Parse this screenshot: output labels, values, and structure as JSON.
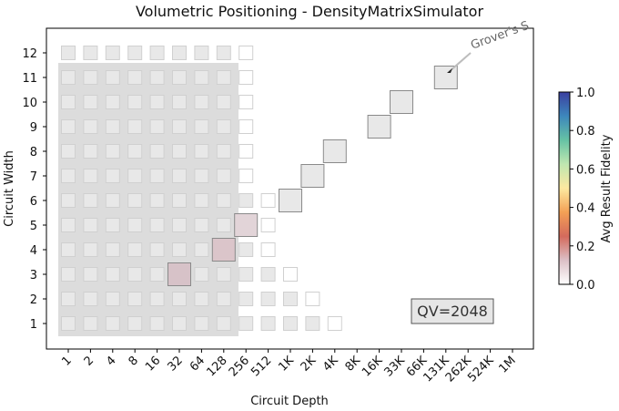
{
  "chart_data": {
    "type": "heatmap",
    "title": "Volumetric Positioning - DensityMatrixSimulator",
    "xlabel": "Circuit Depth",
    "ylabel": "Circuit Width",
    "x_tick_labels": [
      "1",
      "2",
      "4",
      "8",
      "16",
      "32",
      "64",
      "128",
      "256",
      "512",
      "1K",
      "2K",
      "4K",
      "8K",
      "16K",
      "33K",
      "66K",
      "131K",
      "262K",
      "524K",
      "1M"
    ],
    "y_tick_labels": [
      "1",
      "2",
      "3",
      "4",
      "5",
      "6",
      "7",
      "8",
      "9",
      "10",
      "11",
      "12"
    ],
    "grid": false,
    "quantum_volume_box": {
      "label": "QV=2048",
      "width_range": [
        1,
        11
      ],
      "depth_range": [
        1,
        128
      ]
    },
    "annotation": {
      "text": "Grover's S",
      "target_width": 11,
      "target_depth": "131K"
    },
    "colorbar": {
      "label": "Avg Result Fidelity",
      "range": [
        0.0,
        1.0
      ],
      "ticks": [
        "0.0",
        "0.2",
        "0.4",
        "0.6",
        "0.8",
        "1.0"
      ],
      "colors": [
        "#ffffff",
        "#dcc0c6",
        "#d46a5c",
        "#f3a055",
        "#fde9a0",
        "#bfe7b0",
        "#66c2a4",
        "#3d87bc",
        "#3b3fa0"
      ]
    },
    "cells": [
      {
        "width": 12,
        "depth": "1",
        "kind": "volumetric"
      },
      {
        "width": 12,
        "depth": "2",
        "kind": "volumetric"
      },
      {
        "width": 12,
        "depth": "4",
        "kind": "volumetric"
      },
      {
        "width": 12,
        "depth": "8",
        "kind": "volumetric"
      },
      {
        "width": 12,
        "depth": "16",
        "kind": "volumetric"
      },
      {
        "width": 12,
        "depth": "32",
        "kind": "volumetric"
      },
      {
        "width": 12,
        "depth": "64",
        "kind": "volumetric"
      },
      {
        "width": 12,
        "depth": "128",
        "kind": "volumetric"
      },
      {
        "width": 12,
        "depth": "256",
        "kind": "empty"
      },
      {
        "width": 11,
        "depth": "1",
        "kind": "volumetric"
      },
      {
        "width": 11,
        "depth": "2",
        "kind": "volumetric"
      },
      {
        "width": 11,
        "depth": "4",
        "kind": "volumetric"
      },
      {
        "width": 11,
        "depth": "8",
        "kind": "volumetric"
      },
      {
        "width": 11,
        "depth": "16",
        "kind": "volumetric"
      },
      {
        "width": 11,
        "depth": "32",
        "kind": "volumetric"
      },
      {
        "width": 11,
        "depth": "64",
        "kind": "volumetric"
      },
      {
        "width": 11,
        "depth": "128",
        "kind": "volumetric"
      },
      {
        "width": 11,
        "depth": "256",
        "kind": "empty"
      },
      {
        "width": 10,
        "depth": "1",
        "kind": "volumetric"
      },
      {
        "width": 10,
        "depth": "2",
        "kind": "volumetric"
      },
      {
        "width": 10,
        "depth": "4",
        "kind": "volumetric"
      },
      {
        "width": 10,
        "depth": "8",
        "kind": "volumetric"
      },
      {
        "width": 10,
        "depth": "16",
        "kind": "volumetric"
      },
      {
        "width": 10,
        "depth": "32",
        "kind": "volumetric"
      },
      {
        "width": 10,
        "depth": "64",
        "kind": "volumetric"
      },
      {
        "width": 10,
        "depth": "128",
        "kind": "volumetric"
      },
      {
        "width": 10,
        "depth": "256",
        "kind": "empty"
      },
      {
        "width": 9,
        "depth": "1",
        "kind": "volumetric"
      },
      {
        "width": 9,
        "depth": "2",
        "kind": "volumetric"
      },
      {
        "width": 9,
        "depth": "4",
        "kind": "volumetric"
      },
      {
        "width": 9,
        "depth": "8",
        "kind": "volumetric"
      },
      {
        "width": 9,
        "depth": "16",
        "kind": "volumetric"
      },
      {
        "width": 9,
        "depth": "32",
        "kind": "volumetric"
      },
      {
        "width": 9,
        "depth": "64",
        "kind": "volumetric"
      },
      {
        "width": 9,
        "depth": "128",
        "kind": "volumetric"
      },
      {
        "width": 9,
        "depth": "256",
        "kind": "empty"
      },
      {
        "width": 8,
        "depth": "1",
        "kind": "volumetric"
      },
      {
        "width": 8,
        "depth": "2",
        "kind": "volumetric"
      },
      {
        "width": 8,
        "depth": "4",
        "kind": "volumetric"
      },
      {
        "width": 8,
        "depth": "8",
        "kind": "volumetric"
      },
      {
        "width": 8,
        "depth": "16",
        "kind": "volumetric"
      },
      {
        "width": 8,
        "depth": "32",
        "kind": "volumetric"
      },
      {
        "width": 8,
        "depth": "64",
        "kind": "volumetric"
      },
      {
        "width": 8,
        "depth": "128",
        "kind": "volumetric"
      },
      {
        "width": 8,
        "depth": "256",
        "kind": "empty"
      },
      {
        "width": 7,
        "depth": "1",
        "kind": "volumetric"
      },
      {
        "width": 7,
        "depth": "2",
        "kind": "volumetric"
      },
      {
        "width": 7,
        "depth": "4",
        "kind": "volumetric"
      },
      {
        "width": 7,
        "depth": "8",
        "kind": "volumetric"
      },
      {
        "width": 7,
        "depth": "16",
        "kind": "volumetric"
      },
      {
        "width": 7,
        "depth": "32",
        "kind": "volumetric"
      },
      {
        "width": 7,
        "depth": "64",
        "kind": "volumetric"
      },
      {
        "width": 7,
        "depth": "128",
        "kind": "volumetric"
      },
      {
        "width": 7,
        "depth": "256",
        "kind": "empty"
      },
      {
        "width": 6,
        "depth": "1",
        "kind": "volumetric"
      },
      {
        "width": 6,
        "depth": "2",
        "kind": "volumetric"
      },
      {
        "width": 6,
        "depth": "4",
        "kind": "volumetric"
      },
      {
        "width": 6,
        "depth": "8",
        "kind": "volumetric"
      },
      {
        "width": 6,
        "depth": "16",
        "kind": "volumetric"
      },
      {
        "width": 6,
        "depth": "32",
        "kind": "volumetric"
      },
      {
        "width": 6,
        "depth": "64",
        "kind": "volumetric"
      },
      {
        "width": 6,
        "depth": "128",
        "kind": "volumetric"
      },
      {
        "width": 6,
        "depth": "256",
        "kind": "volumetric"
      },
      {
        "width": 6,
        "depth": "512",
        "kind": "empty"
      },
      {
        "width": 5,
        "depth": "1",
        "kind": "volumetric"
      },
      {
        "width": 5,
        "depth": "2",
        "kind": "volumetric"
      },
      {
        "width": 5,
        "depth": "4",
        "kind": "volumetric"
      },
      {
        "width": 5,
        "depth": "8",
        "kind": "volumetric"
      },
      {
        "width": 5,
        "depth": "16",
        "kind": "volumetric"
      },
      {
        "width": 5,
        "depth": "32",
        "kind": "volumetric"
      },
      {
        "width": 5,
        "depth": "64",
        "kind": "volumetric"
      },
      {
        "width": 5,
        "depth": "128",
        "kind": "volumetric"
      },
      {
        "width": 5,
        "depth": "512",
        "kind": "empty"
      },
      {
        "width": 4,
        "depth": "1",
        "kind": "volumetric"
      },
      {
        "width": 4,
        "depth": "2",
        "kind": "volumetric"
      },
      {
        "width": 4,
        "depth": "4",
        "kind": "volumetric"
      },
      {
        "width": 4,
        "depth": "8",
        "kind": "volumetric"
      },
      {
        "width": 4,
        "depth": "16",
        "kind": "volumetric"
      },
      {
        "width": 4,
        "depth": "32",
        "kind": "volumetric"
      },
      {
        "width": 4,
        "depth": "64",
        "kind": "volumetric"
      },
      {
        "width": 4,
        "depth": "128",
        "kind": "volumetric"
      },
      {
        "width": 4,
        "depth": "256",
        "kind": "volumetric"
      },
      {
        "width": 4,
        "depth": "512",
        "kind": "empty"
      },
      {
        "width": 3,
        "depth": "1",
        "kind": "volumetric"
      },
      {
        "width": 3,
        "depth": "2",
        "kind": "volumetric"
      },
      {
        "width": 3,
        "depth": "4",
        "kind": "volumetric"
      },
      {
        "width": 3,
        "depth": "8",
        "kind": "volumetric"
      },
      {
        "width": 3,
        "depth": "16",
        "kind": "volumetric"
      },
      {
        "width": 3,
        "depth": "32",
        "kind": "volumetric"
      },
      {
        "width": 3,
        "depth": "64",
        "kind": "volumetric"
      },
      {
        "width": 3,
        "depth": "128",
        "kind": "volumetric"
      },
      {
        "width": 3,
        "depth": "256",
        "kind": "volumetric"
      },
      {
        "width": 3,
        "depth": "512",
        "kind": "volumetric"
      },
      {
        "width": 3,
        "depth": "1K",
        "kind": "empty"
      },
      {
        "width": 2,
        "depth": "1",
        "kind": "volumetric"
      },
      {
        "width": 2,
        "depth": "2",
        "kind": "volumetric"
      },
      {
        "width": 2,
        "depth": "4",
        "kind": "volumetric"
      },
      {
        "width": 2,
        "depth": "8",
        "kind": "volumetric"
      },
      {
        "width": 2,
        "depth": "16",
        "kind": "volumetric"
      },
      {
        "width": 2,
        "depth": "32",
        "kind": "volumetric"
      },
      {
        "width": 2,
        "depth": "64",
        "kind": "volumetric"
      },
      {
        "width": 2,
        "depth": "128",
        "kind": "volumetric"
      },
      {
        "width": 2,
        "depth": "256",
        "kind": "volumetric"
      },
      {
        "width": 2,
        "depth": "512",
        "kind": "volumetric"
      },
      {
        "width": 2,
        "depth": "1K",
        "kind": "volumetric"
      },
      {
        "width": 2,
        "depth": "2K",
        "kind": "empty"
      },
      {
        "width": 1,
        "depth": "1",
        "kind": "volumetric"
      },
      {
        "width": 1,
        "depth": "2",
        "kind": "volumetric"
      },
      {
        "width": 1,
        "depth": "4",
        "kind": "volumetric"
      },
      {
        "width": 1,
        "depth": "8",
        "kind": "volumetric"
      },
      {
        "width": 1,
        "depth": "16",
        "kind": "volumetric"
      },
      {
        "width": 1,
        "depth": "32",
        "kind": "volumetric"
      },
      {
        "width": 1,
        "depth": "64",
        "kind": "volumetric"
      },
      {
        "width": 1,
        "depth": "128",
        "kind": "volumetric"
      },
      {
        "width": 1,
        "depth": "256",
        "kind": "volumetric"
      },
      {
        "width": 1,
        "depth": "512",
        "kind": "volumetric"
      },
      {
        "width": 1,
        "depth": "1K",
        "kind": "volumetric"
      },
      {
        "width": 1,
        "depth": "2K",
        "kind": "volumetric"
      },
      {
        "width": 1,
        "depth": "4K",
        "kind": "empty"
      }
    ],
    "app_points": [
      {
        "width": 3,
        "depth": "32",
        "fidelity": 0.18,
        "color": "#d7c2c8"
      },
      {
        "width": 4,
        "depth": "128",
        "fidelity": 0.1,
        "color": "#dbc5ca"
      },
      {
        "width": 5,
        "depth": "256",
        "fidelity": 0.06,
        "color": "#e2d4d8"
      },
      {
        "width": 6,
        "depth": "1K",
        "fidelity": 0.0,
        "color": "#e8e8e8"
      },
      {
        "width": 7,
        "depth": "2K",
        "fidelity": 0.0,
        "color": "#e8e8e8"
      },
      {
        "width": 8,
        "depth": "4K",
        "fidelity": 0.0,
        "color": "#e8e8e8"
      },
      {
        "width": 9,
        "depth": "16K",
        "fidelity": 0.0,
        "color": "#e8e8e8"
      },
      {
        "width": 10,
        "depth": "33K",
        "fidelity": 0.0,
        "color": "#e8e8e8"
      },
      {
        "width": 11,
        "depth": "131K",
        "fidelity": 0.0,
        "color": "#e8e8e8"
      }
    ]
  }
}
